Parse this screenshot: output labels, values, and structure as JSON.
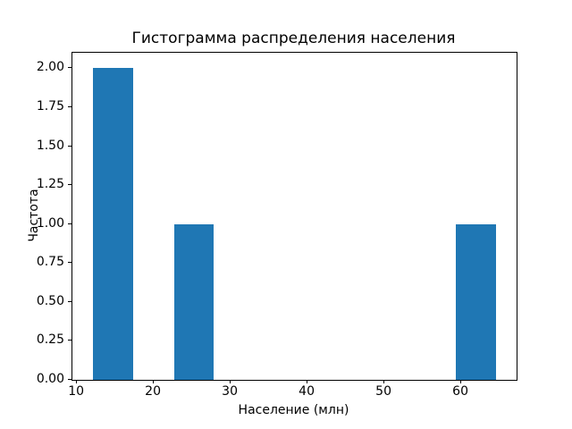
{
  "chart_data": {
    "type": "bar",
    "title": "Гистограмма распределения населения",
    "xlabel": "Население (млн)",
    "ylabel": "Частота",
    "bar_color": "#1f77b4",
    "grid": false,
    "legend": null,
    "xlim": [
      9.4,
      67.2
    ],
    "ylim": [
      0,
      2.1
    ],
    "x_ticks": [
      10,
      20,
      30,
      40,
      50,
      60
    ],
    "y_ticks": [
      "0.00",
      "0.25",
      "0.50",
      "0.75",
      "1.00",
      "1.25",
      "1.50",
      "1.75",
      "2.00"
    ],
    "bars": [
      {
        "x0": 12.1,
        "x1": 17.3,
        "count": 2
      },
      {
        "x0": 22.6,
        "x1": 27.8,
        "count": 1
      },
      {
        "x0": 59.3,
        "x1": 64.5,
        "count": 1
      }
    ]
  }
}
